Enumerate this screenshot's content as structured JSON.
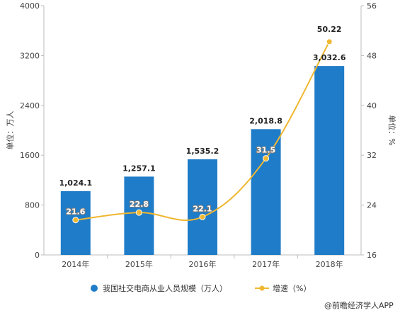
{
  "chart_data": {
    "type": "bar",
    "categories": [
      "2014年",
      "2015年",
      "2016年",
      "2017年",
      "2018年"
    ],
    "series": [
      {
        "name": "我国社交电商从业人员规模（万人）",
        "type": "bar",
        "axis": "left",
        "values": [
          1024.1,
          1257.1,
          1535.2,
          2018.8,
          3032.6
        ],
        "labels": [
          "1,024.1",
          "1,257.1",
          "1,535.2",
          "2,018.8",
          "3,032.6"
        ],
        "color": "#1f7cc8"
      },
      {
        "name": "增速（%）",
        "type": "line",
        "axis": "right",
        "values": [
          21.6,
          22.8,
          22.1,
          31.5,
          50.22
        ],
        "labels": [
          "21.6",
          "22.8",
          "22.1",
          "31.5",
          "50.22"
        ],
        "color": "#f0b731"
      }
    ],
    "ylabel": "单位：万人",
    "y2label": "单位：%",
    "ylim": [
      0,
      4000
    ],
    "yticks": [
      "0",
      "800",
      "1600",
      "2400",
      "3200",
      "4000"
    ],
    "y2lim": [
      16,
      56
    ],
    "y2ticks": [
      "16",
      "24",
      "32",
      "40",
      "48",
      "56"
    ],
    "grid": false,
    "legend": "bottom"
  },
  "source": "@前瞻经济学人APP",
  "colors": {
    "bar": "#1f7cc8",
    "line": "#f0b731",
    "axis": "#bdbdbd"
  }
}
